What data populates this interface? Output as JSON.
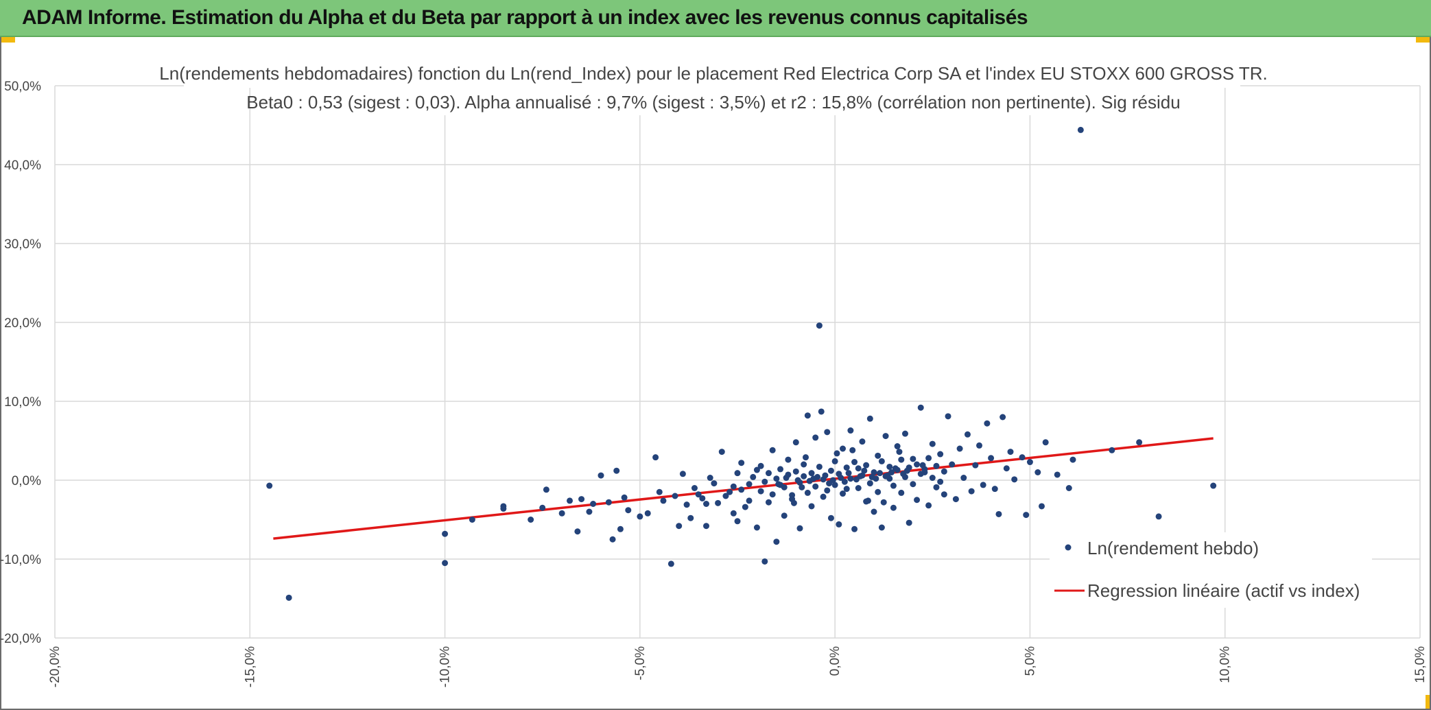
{
  "header": {
    "title": "ADAM Informe. Estimation du Alpha et du Beta par rapport à un index avec les revenus connus capitalisés"
  },
  "chart_data": {
    "type": "scatter",
    "title_line1": "Ln(rendements hebdomadaires) fonction du Ln(rend_Index) pour le placement Red Electrica Corp SA et l'index EU STOXX 600 GROSS TR.",
    "title_line2": "Beta0 : 0,53 (sigest : 0,03). Alpha annualisé : 9,7% (sigest : 3,5%) et r2 : 15,8% (corrélation non pertinente). Sig résidu",
    "xlim": [
      -20,
      15
    ],
    "ylim": [
      -20,
      50
    ],
    "x_ticks": [
      "-20,0%",
      "-15,0%",
      "-10,0%",
      "-5,0%",
      "0,0%",
      "5,0%",
      "10,0%",
      "15,0%"
    ],
    "y_ticks": [
      "-20,0%",
      "-10,0%",
      "0,0%",
      "10,0%",
      "20,0%",
      "30,0%",
      "40,0%",
      "50,0%"
    ],
    "grid": true,
    "legend_position": "bottom-right",
    "series": [
      {
        "name": "Ln(rendement hebdo)",
        "kind": "scatter",
        "color": "#24437a",
        "points": [
          [
            -14.5,
            -0.7
          ],
          [
            -14.0,
            -14.9
          ],
          [
            -10.0,
            -6.8
          ],
          [
            -10.0,
            -10.5
          ],
          [
            -9.3,
            -5.0
          ],
          [
            -8.5,
            -3.3
          ],
          [
            -8.5,
            -3.6
          ],
          [
            -7.8,
            -5.0
          ],
          [
            -7.5,
            -3.5
          ],
          [
            -7.4,
            -1.2
          ],
          [
            -7.0,
            -4.2
          ],
          [
            -6.8,
            -2.6
          ],
          [
            -6.6,
            -6.5
          ],
          [
            -6.5,
            -2.4
          ],
          [
            -6.3,
            -4.0
          ],
          [
            -6.2,
            -3.0
          ],
          [
            -6.0,
            0.6
          ],
          [
            -5.8,
            -2.8
          ],
          [
            -5.7,
            -7.5
          ],
          [
            -5.6,
            1.2
          ],
          [
            -5.5,
            -6.2
          ],
          [
            -5.4,
            -2.2
          ],
          [
            -5.3,
            -3.8
          ],
          [
            -5.0,
            -4.6
          ],
          [
            -4.8,
            -4.2
          ],
          [
            -4.6,
            2.9
          ],
          [
            -4.5,
            -1.5
          ],
          [
            -4.4,
            -2.6
          ],
          [
            -4.2,
            -10.6
          ],
          [
            -4.1,
            -2.0
          ],
          [
            -4.0,
            -5.8
          ],
          [
            -3.9,
            0.8
          ],
          [
            -3.8,
            -3.1
          ],
          [
            -3.7,
            -4.8
          ],
          [
            -3.6,
            -1.0
          ],
          [
            -3.4,
            -2.3
          ],
          [
            -3.3,
            -5.8
          ],
          [
            -3.2,
            0.3
          ],
          [
            -3.0,
            -2.9
          ],
          [
            -2.9,
            3.6
          ],
          [
            -2.7,
            -1.5
          ],
          [
            -2.6,
            -4.2
          ],
          [
            -2.5,
            -5.2
          ],
          [
            -2.4,
            2.2
          ],
          [
            -2.3,
            -3.4
          ],
          [
            -2.2,
            -0.5
          ],
          [
            -2.0,
            -6.0
          ],
          [
            -1.9,
            1.8
          ],
          [
            -1.8,
            -10.3
          ],
          [
            -1.7,
            -2.8
          ],
          [
            -1.6,
            3.8
          ],
          [
            -1.5,
            -7.8
          ],
          [
            -1.4,
            -0.6
          ],
          [
            -1.3,
            -4.5
          ],
          [
            -1.2,
            2.6
          ],
          [
            -1.1,
            -1.9
          ],
          [
            -1.0,
            4.8
          ],
          [
            -0.9,
            -6.1
          ],
          [
            -0.8,
            0.5
          ],
          [
            -0.7,
            8.2
          ],
          [
            -0.6,
            -3.3
          ],
          [
            -0.5,
            5.4
          ],
          [
            -0.4,
            19.6
          ],
          [
            -0.35,
            8.7
          ],
          [
            -0.3,
            -2.1
          ],
          [
            -0.2,
            6.1
          ],
          [
            -0.1,
            -4.8
          ],
          [
            0.0,
            2.4
          ],
          [
            0.1,
            -5.6
          ],
          [
            0.2,
            4.0
          ],
          [
            0.3,
            -1.1
          ],
          [
            0.4,
            6.3
          ],
          [
            0.5,
            -6.2
          ],
          [
            0.6,
            1.5
          ],
          [
            0.7,
            4.9
          ],
          [
            0.8,
            -2.7
          ],
          [
            0.9,
            7.8
          ],
          [
            1.0,
            -4.0
          ],
          [
            1.1,
            3.1
          ],
          [
            1.2,
            -6.0
          ],
          [
            1.3,
            5.6
          ],
          [
            1.4,
            0.2
          ],
          [
            1.5,
            -3.5
          ],
          [
            1.6,
            4.3
          ],
          [
            1.7,
            -1.6
          ],
          [
            1.8,
            5.9
          ],
          [
            1.9,
            -5.4
          ],
          [
            2.0,
            2.7
          ],
          [
            2.1,
            -2.5
          ],
          [
            2.2,
            9.2
          ],
          [
            2.3,
            1.0
          ],
          [
            2.4,
            -3.2
          ],
          [
            2.5,
            4.6
          ],
          [
            2.6,
            -0.9
          ],
          [
            2.7,
            3.3
          ],
          [
            2.8,
            -1.8
          ],
          [
            2.9,
            8.1
          ],
          [
            3.0,
            2.0
          ],
          [
            3.1,
            -2.4
          ],
          [
            3.2,
            4.0
          ],
          [
            3.3,
            0.3
          ],
          [
            3.4,
            5.8
          ],
          [
            3.5,
            -1.4
          ],
          [
            3.6,
            1.9
          ],
          [
            3.7,
            4.4
          ],
          [
            3.8,
            -0.6
          ],
          [
            3.9,
            7.2
          ],
          [
            4.0,
            2.8
          ],
          [
            4.1,
            -1.1
          ],
          [
            4.2,
            -4.3
          ],
          [
            4.3,
            8.0
          ],
          [
            4.4,
            1.5
          ],
          [
            4.5,
            3.6
          ],
          [
            4.6,
            0.1
          ],
          [
            4.8,
            2.9
          ],
          [
            4.9,
            -4.4
          ],
          [
            5.0,
            2.3
          ],
          [
            5.2,
            1.0
          ],
          [
            5.3,
            -3.3
          ],
          [
            5.4,
            4.8
          ],
          [
            5.7,
            0.7
          ],
          [
            6.0,
            -1.0
          ],
          [
            6.1,
            2.6
          ],
          [
            6.3,
            44.4
          ],
          [
            7.1,
            3.8
          ],
          [
            7.8,
            4.8
          ],
          [
            8.3,
            -4.6
          ],
          [
            9.7,
            -0.7
          ],
          [
            -3.5,
            -1.8
          ],
          [
            -3.1,
            -0.4
          ],
          [
            -2.8,
            -2.0
          ],
          [
            -2.6,
            -0.8
          ],
          [
            -2.4,
            -1.2
          ],
          [
            -2.2,
            -2.6
          ],
          [
            -2.1,
            0.4
          ],
          [
            -1.9,
            -1.4
          ],
          [
            -1.8,
            -0.2
          ],
          [
            -1.7,
            0.9
          ],
          [
            -1.6,
            -1.8
          ],
          [
            -1.5,
            0.2
          ],
          [
            -1.4,
            1.4
          ],
          [
            -1.3,
            -0.9
          ],
          [
            -1.2,
            0.7
          ],
          [
            -1.1,
            -2.4
          ],
          [
            -1.0,
            1.1
          ],
          [
            -0.9,
            -0.3
          ],
          [
            -0.8,
            2.0
          ],
          [
            -0.7,
            -1.6
          ],
          [
            -0.6,
            0.9
          ],
          [
            -0.5,
            -0.8
          ],
          [
            -0.4,
            1.7
          ],
          [
            -0.3,
            0.1
          ],
          [
            -0.2,
            -1.3
          ],
          [
            -0.1,
            1.2
          ],
          [
            0.0,
            -0.6
          ],
          [
            0.1,
            0.8
          ],
          [
            0.2,
            -1.7
          ],
          [
            0.3,
            1.6
          ],
          [
            0.4,
            0.2
          ],
          [
            0.5,
            2.3
          ],
          [
            0.6,
            -1.0
          ],
          [
            0.7,
            0.6
          ],
          [
            0.8,
            1.9
          ],
          [
            0.9,
            -0.4
          ],
          [
            1.0,
            1.0
          ],
          [
            1.1,
            -1.5
          ],
          [
            1.2,
            2.4
          ],
          [
            1.3,
            0.5
          ],
          [
            1.4,
            1.7
          ],
          [
            1.5,
            -0.7
          ],
          [
            1.6,
            1.3
          ],
          [
            1.7,
            2.6
          ],
          [
            1.8,
            0.4
          ],
          [
            1.9,
            1.6
          ],
          [
            2.0,
            -0.5
          ],
          [
            2.1,
            2.0
          ],
          [
            2.2,
            0.8
          ],
          [
            2.3,
            1.4
          ],
          [
            2.4,
            2.8
          ],
          [
            2.5,
            0.3
          ],
          [
            2.6,
            1.8
          ],
          [
            2.7,
            -0.2
          ],
          [
            2.8,
            1.1
          ],
          [
            -1.25,
            0.3
          ],
          [
            -0.95,
            0.0
          ],
          [
            -0.65,
            -0.1
          ],
          [
            -0.45,
            0.4
          ],
          [
            -0.25,
            0.6
          ],
          [
            -0.05,
            0.0
          ],
          [
            0.15,
            0.3
          ],
          [
            0.35,
            0.9
          ],
          [
            0.55,
            0.1
          ],
          [
            0.75,
            1.2
          ],
          [
            0.95,
            0.4
          ],
          [
            1.15,
            0.9
          ],
          [
            1.35,
            0.6
          ],
          [
            1.55,
            1.5
          ],
          [
            1.75,
            0.8
          ],
          [
            -0.85,
            -0.9
          ],
          [
            -0.55,
            0.2
          ],
          [
            -0.15,
            -0.4
          ],
          [
            0.25,
            -0.2
          ],
          [
            0.65,
            0.5
          ],
          [
            1.05,
            0.2
          ],
          [
            1.45,
            1.0
          ],
          [
            1.85,
            1.2
          ],
          [
            2.25,
            1.9
          ],
          [
            -1.45,
            -0.5
          ],
          [
            -2.5,
            0.9
          ],
          [
            -2.0,
            1.3
          ],
          [
            -1.05,
            -2.9
          ],
          [
            0.85,
            -2.6
          ],
          [
            1.25,
            -2.8
          ],
          [
            -0.75,
            2.9
          ],
          [
            0.05,
            3.4
          ],
          [
            0.45,
            3.8
          ],
          [
            1.65,
            3.6
          ],
          [
            -3.3,
            -3.0
          ]
        ]
      },
      {
        "name": "Regression linéaire (actif vs index)",
        "kind": "line",
        "color": "#e01818",
        "points": [
          [
            -14.4,
            -7.4
          ],
          [
            9.7,
            5.3
          ]
        ]
      }
    ]
  }
}
